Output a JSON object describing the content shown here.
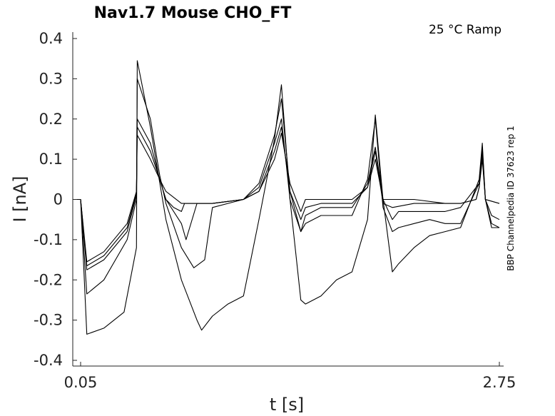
{
  "chart_data": {
    "type": "line",
    "title": "Nav1.7  Mouse  CHO_FT",
    "annotation": "25 °C  Ramp",
    "side_label": "BBP Channelpedia ID 37623 rep 1",
    "xlabel": "t [s]",
    "ylabel": "I [nA]",
    "xlim": [
      0.05,
      2.75
    ],
    "ylim": [
      -0.4,
      0.4
    ],
    "xticks": [
      0.05,
      2.75
    ],
    "xtick_labels": [
      "0.05",
      "2.75"
    ],
    "yticks": [
      0.4,
      0.3,
      0.2,
      0.1,
      0,
      -0.1,
      -0.2,
      -0.3,
      -0.4
    ],
    "ytick_labels": [
      "0.4",
      "0.3",
      "0.2",
      "0.1",
      "0",
      "-0.1",
      "-0.2",
      "-0.3",
      "-0.4"
    ],
    "grid": false,
    "series": [
      {
        "x": [
          0.0,
          0.04,
          0.05,
          0.09,
          0.2,
          0.35,
          0.41,
          0.415,
          0.5,
          0.56,
          0.6,
          0.7,
          0.9,
          1.0,
          1.1,
          1.2,
          1.3,
          1.345,
          1.4,
          1.47,
          1.5,
          1.6,
          1.7,
          1.8,
          1.9,
          1.95,
          2.0,
          2.06,
          2.2,
          2.4,
          2.5,
          2.6,
          2.62,
          2.64,
          2.66,
          2.75
        ],
        "y": [
          0.0,
          0.0,
          0.0,
          -0.155,
          -0.13,
          -0.06,
          0.02,
          0.16,
          0.1,
          0.05,
          0.02,
          -0.01,
          -0.01,
          -0.005,
          0.0,
          0.02,
          0.1,
          0.165,
          0.04,
          -0.03,
          0.0,
          0.0,
          0.0,
          0.0,
          0.03,
          0.1,
          0.0,
          0.0,
          0.0,
          -0.01,
          -0.01,
          0.0,
          0.03,
          0.1,
          0.0,
          -0.01
        ]
      },
      {
        "x": [
          0.0,
          0.04,
          0.05,
          0.09,
          0.2,
          0.35,
          0.41,
          0.415,
          0.5,
          0.56,
          0.6,
          0.65,
          0.7,
          0.72,
          0.9,
          1.0,
          1.1,
          1.2,
          1.3,
          1.345,
          1.4,
          1.47,
          1.5,
          1.6,
          1.8,
          1.9,
          1.95,
          2.0,
          2.06,
          2.2,
          2.4,
          2.5,
          2.6,
          2.62,
          2.64,
          2.66,
          2.75
        ],
        "y": [
          0.0,
          0.0,
          0.0,
          -0.165,
          -0.14,
          -0.07,
          0.015,
          0.18,
          0.12,
          0.05,
          0.0,
          -0.02,
          -0.03,
          -0.01,
          -0.01,
          -0.005,
          0.0,
          0.02,
          0.12,
          0.18,
          0.02,
          -0.05,
          -0.02,
          -0.01,
          -0.01,
          0.03,
          0.12,
          -0.01,
          -0.02,
          -0.01,
          -0.01,
          -0.01,
          0.0,
          0.03,
          0.11,
          0.0,
          -0.01
        ]
      },
      {
        "x": [
          0.0,
          0.04,
          0.05,
          0.09,
          0.2,
          0.35,
          0.41,
          0.415,
          0.5,
          0.56,
          0.6,
          0.7,
          0.73,
          0.8,
          0.9,
          1.0,
          1.1,
          1.2,
          1.3,
          1.345,
          1.4,
          1.47,
          1.5,
          1.6,
          1.8,
          1.9,
          1.95,
          2.0,
          2.06,
          2.1,
          2.2,
          2.4,
          2.5,
          2.62,
          2.64,
          2.66,
          2.7,
          2.75
        ],
        "y": [
          0.0,
          0.0,
          0.0,
          -0.175,
          -0.15,
          -0.08,
          0.01,
          0.2,
          0.14,
          0.05,
          0.0,
          -0.06,
          -0.1,
          -0.01,
          -0.01,
          -0.005,
          0.0,
          0.03,
          0.14,
          0.2,
          0.0,
          -0.08,
          -0.04,
          -0.02,
          -0.02,
          0.04,
          0.13,
          0.0,
          -0.05,
          -0.03,
          -0.03,
          -0.03,
          -0.02,
          0.04,
          0.12,
          0.0,
          -0.04,
          -0.05
        ]
      },
      {
        "x": [
          0.0,
          0.04,
          0.05,
          0.09,
          0.2,
          0.35,
          0.41,
          0.415,
          0.5,
          0.56,
          0.6,
          0.7,
          0.78,
          0.85,
          0.88,
          0.9,
          1.0,
          1.1,
          1.2,
          1.3,
          1.345,
          1.4,
          1.47,
          1.5,
          1.6,
          1.8,
          1.9,
          1.95,
          2.0,
          2.06,
          2.1,
          2.2,
          2.3,
          2.4,
          2.5,
          2.62,
          2.64,
          2.66,
          2.7,
          2.75
        ],
        "y": [
          0.0,
          0.0,
          0.0,
          -0.235,
          -0.2,
          -0.1,
          0.0,
          0.3,
          0.2,
          0.06,
          -0.01,
          -0.12,
          -0.17,
          -0.15,
          -0.07,
          -0.02,
          -0.01,
          0.0,
          0.04,
          0.16,
          0.25,
          0.02,
          -0.08,
          -0.06,
          -0.04,
          -0.04,
          0.05,
          0.2,
          -0.02,
          -0.08,
          -0.07,
          -0.06,
          -0.05,
          -0.06,
          -0.06,
          0.04,
          0.13,
          0.0,
          -0.06,
          -0.07
        ]
      },
      {
        "x": [
          0.0,
          0.04,
          0.05,
          0.09,
          0.2,
          0.33,
          0.41,
          0.415,
          0.5,
          0.6,
          0.7,
          0.8,
          0.83,
          0.9,
          1.0,
          1.1,
          1.2,
          1.3,
          1.345,
          1.4,
          1.47,
          1.5,
          1.6,
          1.7,
          1.8,
          1.9,
          1.95,
          2.0,
          2.06,
          2.1,
          2.2,
          2.3,
          2.4,
          2.5,
          2.62,
          2.64,
          2.66,
          2.7,
          2.75
        ],
        "y": [
          0.0,
          0.0,
          0.0,
          -0.335,
          -0.32,
          -0.28,
          -0.12,
          0.345,
          0.18,
          -0.05,
          -0.2,
          -0.3,
          -0.325,
          -0.29,
          -0.26,
          -0.24,
          -0.05,
          0.15,
          0.285,
          0.0,
          -0.25,
          -0.26,
          -0.24,
          -0.2,
          -0.18,
          -0.05,
          0.21,
          0.0,
          -0.18,
          -0.16,
          -0.12,
          -0.09,
          -0.08,
          -0.07,
          0.05,
          0.14,
          0.0,
          -0.07,
          -0.07
        ]
      }
    ]
  }
}
